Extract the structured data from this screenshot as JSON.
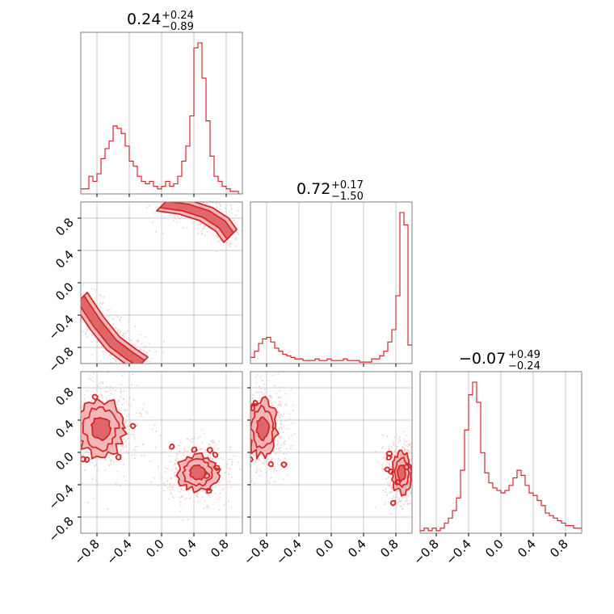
{
  "colors": {
    "series": "#d62728",
    "fill_outer": "#f2b8b9",
    "fill_inner": "#e06769",
    "scatter": "#f4c8c9"
  },
  "chart_data": [
    {
      "type": "histogram",
      "panel": "diag-param-1",
      "title_value": "0.24",
      "title_plus": "+0.24",
      "title_minus": "−0.89",
      "xlim": [
        -1.0,
        1.0
      ],
      "xticks": [
        -0.8,
        -0.4,
        0.0,
        0.4,
        0.8
      ],
      "grid": true,
      "bins_x": [
        -1.0,
        -0.95,
        -0.9,
        -0.85,
        -0.8,
        -0.75,
        -0.7,
        -0.65,
        -0.6,
        -0.55,
        -0.5,
        -0.45,
        -0.4,
        -0.35,
        -0.3,
        -0.25,
        -0.2,
        -0.15,
        -0.1,
        -0.05,
        0.0,
        0.05,
        0.1,
        0.15,
        0.2,
        0.25,
        0.3,
        0.35,
        0.4,
        0.45,
        0.5,
        0.55,
        0.6,
        0.65,
        0.7,
        0.75,
        0.8,
        0.85,
        0.9,
        0.95
      ],
      "counts": [
        2,
        2,
        7,
        5,
        8,
        14,
        18,
        21,
        27,
        26,
        24,
        19,
        13,
        11,
        7,
        5,
        4,
        5,
        3,
        2,
        3,
        5,
        3,
        4,
        7,
        13,
        19,
        31,
        58,
        60,
        46,
        29,
        15,
        7,
        5,
        3,
        2,
        1,
        1,
        0
      ]
    },
    {
      "type": "scatter-contour",
      "panel": "param-2-vs-param-1",
      "xlim": [
        -1.0,
        1.0
      ],
      "ylim": [
        -1.0,
        1.0
      ],
      "yticks": [
        -0.8,
        -0.4,
        0.0,
        0.4,
        0.8
      ],
      "yticklabels": [
        "−0.8",
        "−0.4",
        "0.0",
        "0.4",
        "0.8"
      ],
      "grid": true,
      "modes": [
        {
          "x": [
            0.02,
            0.3,
            0.55,
            0.75,
            0.85
          ],
          "y": [
            0.97,
            0.93,
            0.85,
            0.72,
            0.58
          ]
        },
        {
          "x": [
            -1.0,
            -0.8,
            -0.6,
            -0.4,
            -0.25
          ],
          "y": [
            -0.2,
            -0.5,
            -0.75,
            -0.9,
            -1.0
          ]
        }
      ]
    },
    {
      "type": "histogram",
      "panel": "diag-param-2",
      "title_value": "0.72",
      "title_plus": "+0.17",
      "title_minus": "−1.50",
      "xlim": [
        -1.0,
        1.0
      ],
      "grid": true,
      "bins_x": [
        -1.0,
        -0.95,
        -0.9,
        -0.85,
        -0.8,
        -0.75,
        -0.7,
        -0.65,
        -0.6,
        -0.55,
        -0.5,
        -0.45,
        -0.4,
        -0.35,
        -0.3,
        -0.25,
        -0.2,
        -0.15,
        -0.1,
        -0.05,
        0.0,
        0.05,
        0.1,
        0.15,
        0.2,
        0.25,
        0.3,
        0.35,
        0.4,
        0.45,
        0.5,
        0.55,
        0.6,
        0.65,
        0.7,
        0.75,
        0.8,
        0.85,
        0.9,
        0.95
      ],
      "counts": [
        4,
        8,
        13,
        16,
        17,
        14,
        10,
        8,
        6,
        5,
        4,
        3,
        3,
        2,
        2,
        2,
        3,
        2,
        2,
        3,
        2,
        2,
        2,
        3,
        2,
        2,
        2,
        1,
        1,
        1,
        3,
        3,
        5,
        8,
        14,
        22,
        44,
        98,
        90,
        12
      ]
    },
    {
      "type": "scatter-contour",
      "panel": "param-3-vs-param-1",
      "xlim": [
        -1.0,
        1.0
      ],
      "ylim": [
        -1.0,
        1.0
      ],
      "xticks": [
        -0.8,
        -0.4,
        0.0,
        0.4,
        0.8
      ],
      "xticklabels": [
        "−0.8",
        "−0.4",
        "0.0",
        "0.4",
        "0.8"
      ],
      "yticks": [
        -0.8,
        -0.4,
        0.0,
        0.4,
        0.8
      ],
      "yticklabels": [
        "−0.8",
        "−0.4",
        "0.0",
        "0.4",
        "0.8"
      ],
      "grid": true,
      "modes": [
        {
          "cx": -0.75,
          "cy": 0.3,
          "rx": 0.28,
          "ry": 0.35
        },
        {
          "cx": 0.45,
          "cy": -0.25,
          "rx": 0.25,
          "ry": 0.22
        }
      ]
    },
    {
      "type": "scatter-contour",
      "panel": "param-3-vs-param-2",
      "xlim": [
        -1.0,
        1.0
      ],
      "ylim": [
        -1.0,
        1.0
      ],
      "xticks": [
        -0.8,
        -0.4,
        0.0,
        0.4,
        0.8
      ],
      "xticklabels": [
        "−0.8",
        "−0.4",
        "0.0",
        "0.4",
        "0.8"
      ],
      "grid": true,
      "modes": [
        {
          "cx": -0.85,
          "cy": 0.3,
          "rx": 0.18,
          "ry": 0.35
        },
        {
          "cx": 0.87,
          "cy": -0.25,
          "rx": 0.12,
          "ry": 0.25
        }
      ]
    },
    {
      "type": "histogram",
      "panel": "diag-param-3",
      "title_value": "−0.07",
      "title_plus": "+0.49",
      "title_minus": "−0.24",
      "xlim": [
        -1.0,
        1.0
      ],
      "xticks": [
        -0.8,
        -0.4,
        0.0,
        0.4,
        0.8
      ],
      "xticklabels": [
        "−0.8",
        "−0.4",
        "0.0",
        "0.4",
        "0.8"
      ],
      "grid": true,
      "bins_x": [
        -1.0,
        -0.95,
        -0.9,
        -0.85,
        -0.8,
        -0.75,
        -0.7,
        -0.65,
        -0.6,
        -0.55,
        -0.5,
        -0.45,
        -0.4,
        -0.35,
        -0.3,
        -0.25,
        -0.2,
        -0.15,
        -0.1,
        -0.05,
        0.0,
        0.05,
        0.1,
        0.15,
        0.2,
        0.25,
        0.3,
        0.35,
        0.4,
        0.45,
        0.5,
        0.55,
        0.6,
        0.65,
        0.7,
        0.75,
        0.8,
        0.85,
        0.9,
        0.95
      ],
      "counts": [
        1,
        2,
        1,
        2,
        1,
        2,
        4,
        6,
        9,
        14,
        25,
        41,
        55,
        60,
        52,
        32,
        24,
        20,
        18,
        17,
        16,
        17,
        19,
        22,
        25,
        23,
        19,
        16,
        15,
        13,
        11,
        8,
        7,
        6,
        5,
        4,
        3,
        3,
        2,
        2
      ]
    }
  ]
}
